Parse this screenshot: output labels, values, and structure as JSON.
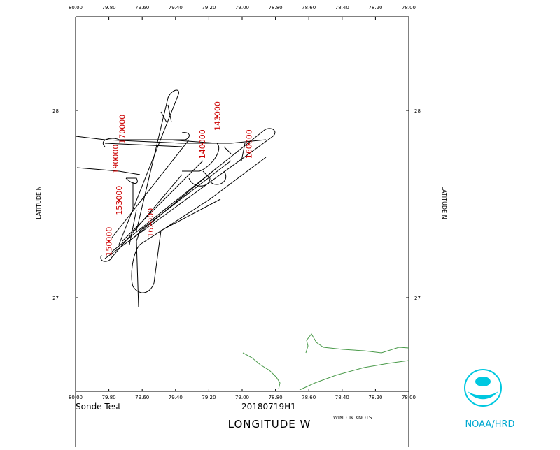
{
  "header": {
    "title": "Sonde Test",
    "flight": "20180719H1",
    "wind_note": "WIND IN KNOTS",
    "org": "NOAA/HRD"
  },
  "chart_data": {
    "type": "map",
    "x_label": "LONGITUDE W",
    "y_label": "LATITUDE N",
    "xlim": [
      80,
      78
    ],
    "ylim": [
      26.5,
      28.5
    ],
    "xticks": [
      {
        "value": 80,
        "label": "80.00"
      },
      {
        "value": 79.8,
        "label": "79.80"
      },
      {
        "value": 79.6,
        "label": "79.60"
      },
      {
        "value": 79.4,
        "label": "79.40"
      },
      {
        "value": 79.2,
        "label": "79.20"
      },
      {
        "value": 79,
        "label": "79.00"
      },
      {
        "value": 78.8,
        "label": "78.80"
      },
      {
        "value": 78.6,
        "label": "78.60"
      },
      {
        "value": 78.4,
        "label": "78.40"
      },
      {
        "value": 78.2,
        "label": "78.20"
      },
      {
        "value": 78,
        "label": "78.00"
      }
    ],
    "yticks": [
      28,
      27
    ],
    "sonde_color": "#cc0000",
    "sondes": [
      {
        "label": "150000",
        "lon": 79.8,
        "lat": 27.3
      },
      {
        "label": "153000",
        "lon": 79.74,
        "lat": 27.52
      },
      {
        "label": "190000",
        "lon": 79.76,
        "lat": 27.74
      },
      {
        "label": "170000",
        "lon": 79.72,
        "lat": 27.9
      },
      {
        "label": "143000",
        "lon": 79.15,
        "lat": 27.97
      },
      {
        "label": "140000",
        "lon": 79.24,
        "lat": 27.82
      },
      {
        "label": "160000",
        "lon": 78.96,
        "lat": 27.82
      },
      {
        "label": "162000",
        "lon": 79.55,
        "lat": 27.4
      }
    ]
  }
}
